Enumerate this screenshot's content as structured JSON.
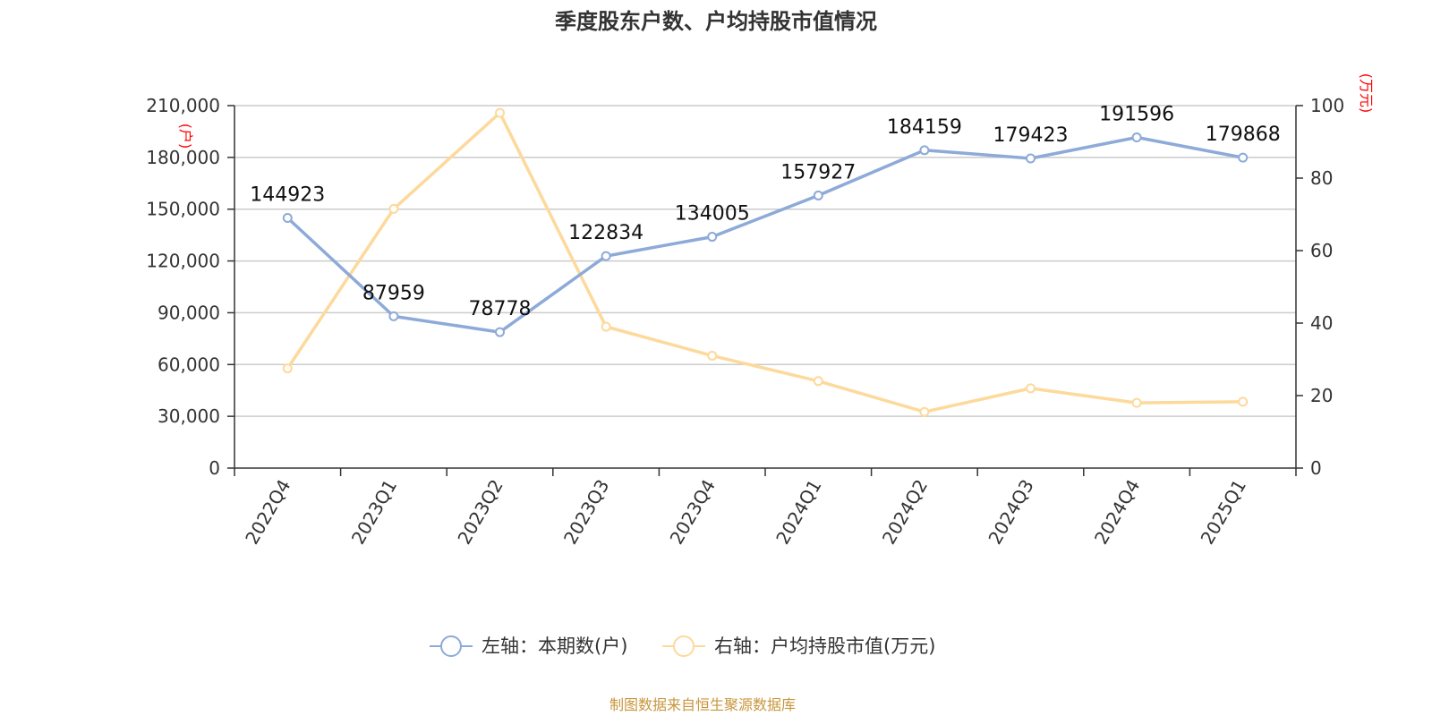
{
  "title": "季度股东户数、户均持股市值情况",
  "source": "制图数据来自恒生聚源数据库",
  "colors": {
    "left_series": "#8daad8",
    "right_series": "#fdd99b",
    "unit": "#ff0000",
    "source": "#c8963c"
  },
  "chart_data": {
    "type": "line",
    "title": "季度股东户数、户均持股市值情况",
    "categories": [
      "2022Q4",
      "2023Q1",
      "2023Q2",
      "2023Q3",
      "2023Q4",
      "2024Q1",
      "2024Q2",
      "2024Q3",
      "2024Q4",
      "2025Q1"
    ],
    "left_axis": {
      "unit": "(户)",
      "ylim": [
        0,
        210000
      ],
      "tick_values": [
        0,
        30000,
        60000,
        90000,
        120000,
        150000,
        180000,
        210000
      ],
      "tick_labels": [
        "0",
        "30,000",
        "60,000",
        "90,000",
        "120,000",
        "150,000",
        "180,000",
        "210,000"
      ]
    },
    "right_axis": {
      "unit": "(万元)",
      "ylim": [
        0,
        100
      ],
      "tick_values": [
        0,
        20,
        40,
        60,
        80,
        100
      ],
      "tick_labels": [
        "0",
        "20",
        "40",
        "60",
        "80",
        "100"
      ]
    },
    "grid": true,
    "legend_position": "bottom",
    "series": [
      {
        "name": "左轴：本期数(户)",
        "axis": "left",
        "color": "#8daad8",
        "values": [
          144923,
          87959,
          78778,
          122834,
          134005,
          157927,
          184159,
          179423,
          191596,
          179868
        ],
        "data_labels": [
          "144923",
          "87959",
          "78778",
          "122834",
          "134005",
          "157927",
          "184159",
          "179423",
          "191596",
          "179868"
        ]
      },
      {
        "name": "右轴：户均持股市值(万元)",
        "axis": "right",
        "color": "#fdd99b",
        "values": [
          27.5,
          71.5,
          98,
          39,
          31,
          24,
          15.5,
          22,
          18,
          18.3
        ]
      }
    ]
  }
}
